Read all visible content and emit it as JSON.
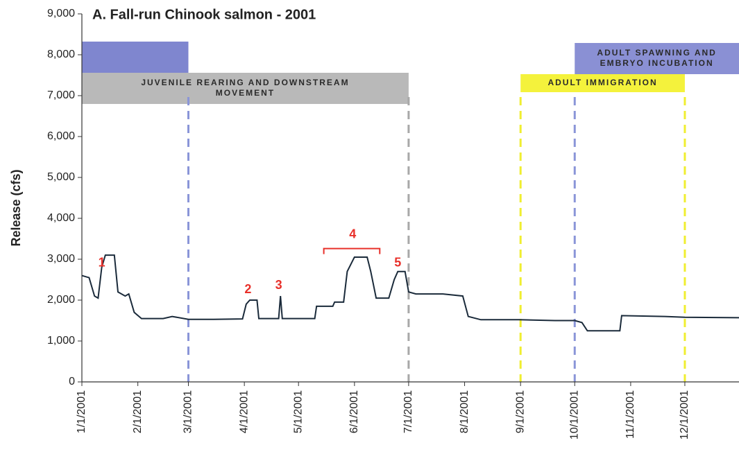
{
  "chart_data": {
    "type": "line",
    "title": "A.  Fall-run Chinook salmon - 2001",
    "ylabel": "Release (cfs)",
    "xlim": [
      "2001-01-01",
      "2001-12-31"
    ],
    "xticks": [
      {
        "value": "2001-01-01",
        "label": "1/1/2001"
      },
      {
        "value": "2001-02-01",
        "label": "2/1/2001"
      },
      {
        "value": "2001-03-01",
        "label": "3/1/2001"
      },
      {
        "value": "2001-04-01",
        "label": "4/1/2001"
      },
      {
        "value": "2001-05-01",
        "label": "5/1/2001"
      },
      {
        "value": "2001-06-01",
        "label": "6/1/2001"
      },
      {
        "value": "2001-07-01",
        "label": "7/1/2001"
      },
      {
        "value": "2001-08-01",
        "label": "8/1/2001"
      },
      {
        "value": "2001-09-01",
        "label": "9/1/2001"
      },
      {
        "value": "2001-10-01",
        "label": "10/1/2001"
      },
      {
        "value": "2001-11-01",
        "label": "11/1/2001"
      },
      {
        "value": "2001-12-01",
        "label": "12/1/2001"
      }
    ],
    "ylim": [
      0,
      9000
    ],
    "yticks": [
      0,
      {
        "value": 1000,
        "label": "1,000"
      },
      {
        "value": 2000,
        "label": "2,000"
      },
      {
        "value": 3000,
        "label": "3,000"
      },
      {
        "value": 4000,
        "label": "4,000"
      },
      {
        "value": 5000,
        "label": "5,000"
      },
      {
        "value": 6000,
        "label": "6,000"
      },
      {
        "value": 7000,
        "label": "7,000"
      },
      {
        "value": 8000,
        "label": "8,000"
      },
      {
        "value": 9000,
        "label": "9,000"
      }
    ],
    "color": "#1a2a3a",
    "x": [
      "2001-01-01",
      "2001-01-05",
      "2001-01-08",
      "2001-01-10",
      "2001-01-12",
      "2001-01-14",
      "2001-01-19",
      "2001-01-21",
      "2001-01-25",
      "2001-01-27",
      "2001-01-30",
      "2001-02-03",
      "2001-02-15",
      "2001-02-20",
      "2001-03-01",
      "2001-03-15",
      "2001-03-31",
      "2001-04-02",
      "2001-04-04",
      "2001-04-08",
      "2001-04-09",
      "2001-04-20",
      "2001-04-21",
      "2001-04-22",
      "2001-05-10",
      "2001-05-11",
      "2001-05-20",
      "2001-05-21",
      "2001-05-26",
      "2001-05-28",
      "2001-06-01",
      "2001-06-08",
      "2001-06-10",
      "2001-06-13",
      "2001-06-20",
      "2001-06-23",
      "2001-06-25",
      "2001-06-29",
      "2001-07-01",
      "2001-07-05",
      "2001-07-20",
      "2001-07-31",
      "2001-08-03",
      "2001-08-10",
      "2001-08-31",
      "2001-09-20",
      "2001-10-01",
      "2001-10-05",
      "2001-10-08",
      "2001-10-26",
      "2001-10-27",
      "2001-11-20",
      "2001-12-01",
      "2001-12-31"
    ],
    "values": [
      2600,
      2550,
      2100,
      2050,
      2800,
      3100,
      3100,
      2200,
      2100,
      2150,
      1700,
      1550,
      1550,
      1600,
      1530,
      1530,
      1540,
      1900,
      2000,
      2000,
      1550,
      1550,
      2100,
      1550,
      1550,
      1850,
      1850,
      1950,
      1950,
      2700,
      3050,
      3050,
      2700,
      2050,
      2050,
      2500,
      2700,
      2700,
      2200,
      2150,
      2150,
      2100,
      1600,
      1520,
      1520,
      1500,
      1500,
      1450,
      1250,
      1250,
      1620,
      1600,
      1580,
      1570
    ],
    "periods": [
      {
        "label": [
          "",
          ""
        ],
        "color": "#7f86cf",
        "ranges": [
          {
            "start": "2001-01-01",
            "end": "2001-03-01"
          }
        ]
      },
      {
        "label": [
          "JUVENILE REARING AND DOWNSTREAM",
          "MOVEMENT"
        ],
        "color": "#b9b9b9",
        "ranges": [
          {
            "start": "2001-01-01",
            "end": "2001-07-01"
          }
        ]
      },
      {
        "label": [
          "ADULT SPAWNING AND",
          "EMBRYO INCUBATION"
        ],
        "color": "#8a90d4",
        "ranges": [
          {
            "start": "2001-10-01",
            "end": "2001-12-31"
          }
        ]
      },
      {
        "label": [
          "ADULT IMMIGRATION"
        ],
        "color": "#f4f23c",
        "ranges": [
          {
            "start": "2001-09-01",
            "end": "2001-12-01"
          }
        ]
      }
    ],
    "dividers": [
      {
        "x": "2001-03-01",
        "color": "#8a95d8"
      },
      {
        "x": "2001-07-01",
        "color": "#a8a8a8"
      },
      {
        "x": "2001-09-01",
        "color": "#f0ee30"
      },
      {
        "x": "2001-10-01",
        "color": "#8a95d8"
      },
      {
        "x": "2001-12-01",
        "color": "#f0ee30"
      }
    ],
    "annotations": [
      {
        "text": "1",
        "x": "2001-01-12",
        "y": 2900
      },
      {
        "text": "2",
        "x": "2001-04-03",
        "y": 2250
      },
      {
        "text": "3",
        "x": "2001-04-20",
        "y": 2350
      },
      {
        "text": "4",
        "x": "2001-05-31",
        "y": 3600,
        "start": "2001-05-15",
        "end": "2001-06-15"
      },
      {
        "text": "5",
        "x": "2001-06-25",
        "y": 2900
      }
    ],
    "annotation_color": "#e8302a"
  }
}
